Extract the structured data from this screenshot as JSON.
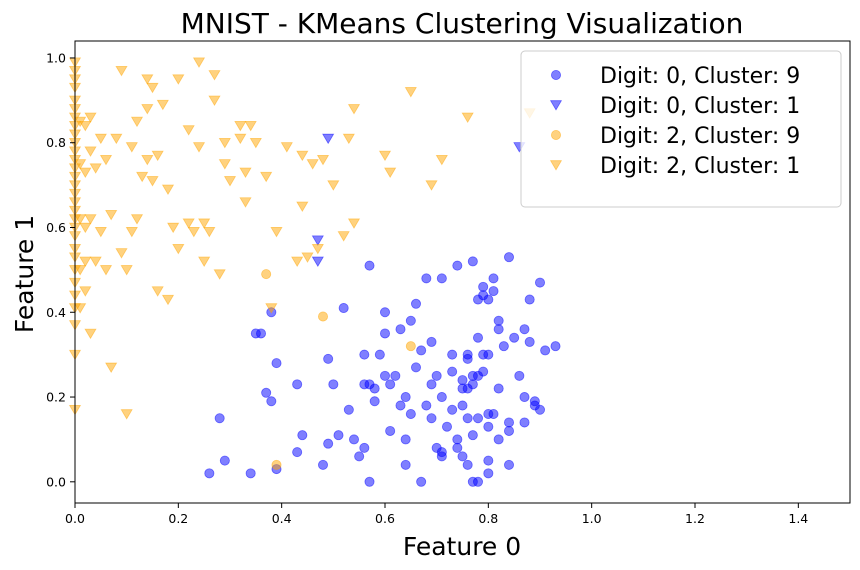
{
  "chart_data": {
    "type": "scatter",
    "title": "MNIST - KMeans Clustering Visualization",
    "xlabel": "Feature 0",
    "ylabel": "Feature 1",
    "xlim": [
      0.0,
      1.5
    ],
    "ylim": [
      -0.05,
      1.04
    ],
    "xticks": [
      "0.0",
      "0.2",
      "0.4",
      "0.6",
      "0.8",
      "1.0",
      "1.2",
      "1.4"
    ],
    "yticks": [
      "0.0",
      "0.2",
      "0.4",
      "0.6",
      "0.8",
      "1.0"
    ],
    "grid": false,
    "legend_position": "top-right",
    "series": [
      {
        "name": "Digit: 0, Cluster: 9",
        "color": "#0000ff",
        "marker": "circle",
        "points": [
          [
            0.26,
            0.02
          ],
          [
            0.29,
            0.05
          ],
          [
            0.28,
            0.15
          ],
          [
            0.34,
            0.02
          ],
          [
            0.36,
            0.35
          ],
          [
            0.35,
            0.35
          ],
          [
            0.37,
            0.21
          ],
          [
            0.38,
            0.19
          ],
          [
            0.38,
            0.4
          ],
          [
            0.39,
            0.28
          ],
          [
            0.39,
            0.03
          ],
          [
            0.43,
            0.23
          ],
          [
            0.43,
            0.07
          ],
          [
            0.44,
            0.11
          ],
          [
            0.48,
            0.04
          ],
          [
            0.49,
            0.09
          ],
          [
            0.49,
            0.29
          ],
          [
            0.5,
            0.23
          ],
          [
            0.51,
            0.11
          ],
          [
            0.52,
            0.41
          ],
          [
            0.53,
            0.17
          ],
          [
            0.54,
            0.1
          ],
          [
            0.55,
            0.06
          ],
          [
            0.56,
            0.23
          ],
          [
            0.56,
            0.3
          ],
          [
            0.56,
            0.08
          ],
          [
            0.57,
            0.51
          ],
          [
            0.57,
            0.23
          ],
          [
            0.57,
            0.0
          ],
          [
            0.58,
            0.19
          ],
          [
            0.58,
            0.22
          ],
          [
            0.59,
            0.3
          ],
          [
            0.6,
            0.25
          ],
          [
            0.6,
            0.4
          ],
          [
            0.6,
            0.35
          ],
          [
            0.61,
            0.23
          ],
          [
            0.61,
            0.12
          ],
          [
            0.62,
            0.25
          ],
          [
            0.63,
            0.36
          ],
          [
            0.63,
            0.18
          ],
          [
            0.64,
            0.04
          ],
          [
            0.64,
            0.1
          ],
          [
            0.64,
            0.2
          ],
          [
            0.65,
            0.16
          ],
          [
            0.65,
            0.38
          ],
          [
            0.66,
            0.42
          ],
          [
            0.66,
            0.27
          ],
          [
            0.67,
            0.31
          ],
          [
            0.67,
            0.0
          ],
          [
            0.68,
            0.18
          ],
          [
            0.68,
            0.48
          ],
          [
            0.69,
            0.23
          ],
          [
            0.69,
            0.15
          ],
          [
            0.69,
            0.33
          ],
          [
            0.7,
            0.25
          ],
          [
            0.7,
            0.08
          ],
          [
            0.71,
            0.2
          ],
          [
            0.71,
            0.07
          ],
          [
            0.71,
            0.06
          ],
          [
            0.71,
            0.48
          ],
          [
            0.72,
            0.13
          ],
          [
            0.73,
            0.17
          ],
          [
            0.73,
            0.26
          ],
          [
            0.73,
            0.3
          ],
          [
            0.74,
            0.08
          ],
          [
            0.74,
            0.1
          ],
          [
            0.74,
            0.51
          ],
          [
            0.75,
            0.22
          ],
          [
            0.75,
            0.24
          ],
          [
            0.75,
            0.18
          ],
          [
            0.75,
            0.06
          ],
          [
            0.76,
            0.29
          ],
          [
            0.76,
            0.3
          ],
          [
            0.76,
            0.04
          ],
          [
            0.76,
            0.22
          ],
          [
            0.76,
            0.15
          ],
          [
            0.77,
            0.52
          ],
          [
            0.77,
            0.25
          ],
          [
            0.77,
            0.23
          ],
          [
            0.77,
            0.0
          ],
          [
            0.77,
            0.11
          ],
          [
            0.78,
            0.0
          ],
          [
            0.78,
            0.34
          ],
          [
            0.78,
            0.43
          ],
          [
            0.78,
            0.25
          ],
          [
            0.78,
            0.15
          ],
          [
            0.79,
            0.3
          ],
          [
            0.79,
            0.26
          ],
          [
            0.79,
            0.46
          ],
          [
            0.79,
            0.44
          ],
          [
            0.8,
            0.16
          ],
          [
            0.8,
            0.02
          ],
          [
            0.8,
            0.05
          ],
          [
            0.8,
            0.3
          ],
          [
            0.8,
            0.13
          ],
          [
            0.8,
            0.43
          ],
          [
            0.81,
            0.45
          ],
          [
            0.81,
            0.48
          ],
          [
            0.81,
            0.16
          ],
          [
            0.82,
            0.38
          ],
          [
            0.82,
            0.22
          ],
          [
            0.82,
            0.1
          ],
          [
            0.82,
            0.36
          ],
          [
            0.83,
            0.32
          ],
          [
            0.84,
            0.53
          ],
          [
            0.84,
            0.14
          ],
          [
            0.84,
            0.04
          ],
          [
            0.84,
            0.12
          ],
          [
            0.85,
            0.34
          ],
          [
            0.86,
            0.25
          ],
          [
            0.87,
            0.36
          ],
          [
            0.87,
            0.2
          ],
          [
            0.87,
            0.14
          ],
          [
            0.88,
            0.33
          ],
          [
            0.88,
            0.43
          ],
          [
            0.89,
            0.18
          ],
          [
            0.89,
            0.19
          ],
          [
            0.9,
            0.17
          ],
          [
            0.9,
            0.47
          ],
          [
            0.91,
            0.31
          ],
          [
            0.93,
            0.32
          ]
        ]
      },
      {
        "name": "Digit: 0, Cluster: 1",
        "color": "#0000ff",
        "marker": "triangle-down",
        "points": [
          [
            0.49,
            0.81
          ],
          [
            0.47,
            0.57
          ],
          [
            0.47,
            0.52
          ],
          [
            0.86,
            0.79
          ]
        ]
      },
      {
        "name": "Digit: 2, Cluster: 9",
        "color": "#ffa500",
        "marker": "circle",
        "points": [
          [
            0.37,
            0.49
          ],
          [
            0.39,
            0.04
          ],
          [
            0.48,
            0.39
          ],
          [
            0.65,
            0.32
          ]
        ]
      },
      {
        "name": "Digit: 2, Cluster: 1",
        "color": "#ffa500",
        "marker": "triangle-down",
        "points": [
          [
            0.0,
            0.99
          ],
          [
            0.0,
            0.97
          ],
          [
            0.0,
            0.95
          ],
          [
            0.0,
            0.93
          ],
          [
            0.0,
            0.9
          ],
          [
            0.0,
            0.88
          ],
          [
            0.0,
            0.86
          ],
          [
            0.0,
            0.84
          ],
          [
            0.0,
            0.82
          ],
          [
            0.0,
            0.8
          ],
          [
            0.0,
            0.78
          ],
          [
            0.0,
            0.76
          ],
          [
            0.0,
            0.74
          ],
          [
            0.0,
            0.72
          ],
          [
            0.0,
            0.7
          ],
          [
            0.0,
            0.68
          ],
          [
            0.0,
            0.66
          ],
          [
            0.0,
            0.64
          ],
          [
            0.0,
            0.62
          ],
          [
            0.0,
            0.6
          ],
          [
            0.0,
            0.58
          ],
          [
            0.0,
            0.55
          ],
          [
            0.0,
            0.53
          ],
          [
            0.0,
            0.5
          ],
          [
            0.0,
            0.47
          ],
          [
            0.0,
            0.44
          ],
          [
            0.0,
            0.41
          ],
          [
            0.0,
            0.37
          ],
          [
            0.0,
            0.3
          ],
          [
            0.0,
            0.17
          ],
          [
            0.01,
            0.85
          ],
          [
            0.01,
            0.75
          ],
          [
            0.01,
            0.62
          ],
          [
            0.01,
            0.5
          ],
          [
            0.01,
            0.41
          ],
          [
            0.02,
            0.84
          ],
          [
            0.02,
            0.73
          ],
          [
            0.02,
            0.6
          ],
          [
            0.02,
            0.52
          ],
          [
            0.02,
            0.45
          ],
          [
            0.03,
            0.86
          ],
          [
            0.03,
            0.78
          ],
          [
            0.03,
            0.35
          ],
          [
            0.03,
            0.62
          ],
          [
            0.04,
            0.52
          ],
          [
            0.04,
            0.74
          ],
          [
            0.05,
            0.81
          ],
          [
            0.05,
            0.59
          ],
          [
            0.06,
            0.5
          ],
          [
            0.06,
            0.76
          ],
          [
            0.07,
            0.63
          ],
          [
            0.07,
            0.27
          ],
          [
            0.08,
            0.81
          ],
          [
            0.09,
            0.97
          ],
          [
            0.09,
            0.54
          ],
          [
            0.1,
            0.5
          ],
          [
            0.1,
            0.16
          ],
          [
            0.11,
            0.79
          ],
          [
            0.11,
            0.59
          ],
          [
            0.12,
            0.85
          ],
          [
            0.12,
            0.62
          ],
          [
            0.13,
            0.72
          ],
          [
            0.14,
            0.95
          ],
          [
            0.14,
            0.88
          ],
          [
            0.14,
            0.76
          ],
          [
            0.15,
            0.93
          ],
          [
            0.15,
            0.71
          ],
          [
            0.16,
            0.77
          ],
          [
            0.16,
            0.45
          ],
          [
            0.17,
            0.89
          ],
          [
            0.18,
            0.69
          ],
          [
            0.18,
            0.43
          ],
          [
            0.19,
            0.6
          ],
          [
            0.2,
            0.95
          ],
          [
            0.2,
            0.55
          ],
          [
            0.22,
            0.61
          ],
          [
            0.22,
            0.83
          ],
          [
            0.23,
            0.59
          ],
          [
            0.24,
            0.99
          ],
          [
            0.24,
            0.79
          ],
          [
            0.25,
            0.61
          ],
          [
            0.25,
            0.52
          ],
          [
            0.26,
            0.59
          ],
          [
            0.27,
            0.96
          ],
          [
            0.27,
            0.9
          ],
          [
            0.28,
            0.49
          ],
          [
            0.29,
            0.8
          ],
          [
            0.29,
            0.75
          ],
          [
            0.3,
            0.71
          ],
          [
            0.32,
            0.84
          ],
          [
            0.32,
            0.81
          ],
          [
            0.33,
            0.73
          ],
          [
            0.33,
            0.66
          ],
          [
            0.34,
            0.84
          ],
          [
            0.35,
            0.8
          ],
          [
            0.37,
            0.72
          ],
          [
            0.38,
            0.41
          ],
          [
            0.39,
            0.59
          ],
          [
            0.41,
            0.79
          ],
          [
            0.43,
            0.52
          ],
          [
            0.44,
            0.65
          ],
          [
            0.44,
            0.77
          ],
          [
            0.45,
            0.53
          ],
          [
            0.46,
            0.75
          ],
          [
            0.47,
            0.55
          ],
          [
            0.48,
            0.76
          ],
          [
            0.5,
            0.7
          ],
          [
            0.52,
            0.58
          ],
          [
            0.53,
            0.81
          ],
          [
            0.54,
            0.61
          ],
          [
            0.54,
            0.88
          ],
          [
            0.6,
            0.77
          ],
          [
            0.61,
            0.73
          ],
          [
            0.65,
            0.92
          ],
          [
            0.69,
            0.7
          ],
          [
            0.71,
            0.76
          ],
          [
            0.76,
            0.86
          ],
          [
            0.88,
            0.87
          ]
        ]
      }
    ]
  }
}
